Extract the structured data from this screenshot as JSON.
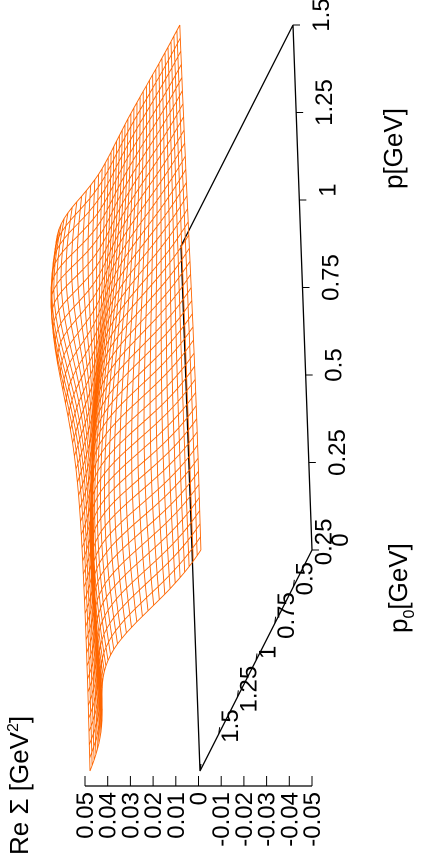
{
  "chart_data": {
    "type": "surface",
    "orientation": "rotated 90° counter-clockwise",
    "zlabel": "Re Σ [GeV",
    "zlabel_sup": "2",
    "zlabel_end": "]",
    "xlabel": "p",
    "xlabel_sub": "0",
    "xlabel_end": "[GeV]",
    "ylabel": "p[GeV]",
    "x_ticks": [
      "0",
      "0.25",
      "0.5",
      "0.75",
      "1",
      "1.25",
      "1.5"
    ],
    "y_ticks": [
      "0",
      "0.25",
      "0.5",
      "0.75",
      "1",
      "1.25",
      "1.5"
    ],
    "z_ticks": [
      "-0.05",
      "-0.04",
      "-0.03",
      "-0.02",
      "-0.01",
      "0",
      "0.01",
      "0.02",
      "0.03",
      "0.04",
      "0.05"
    ],
    "x_range": [
      0,
      1.5
    ],
    "y_range": [
      0,
      1.5
    ],
    "z_range": [
      -0.05,
      0.05
    ],
    "grid_resolution": 40,
    "surface_color": "#ff6600",
    "axis_color": "#000000"
  }
}
